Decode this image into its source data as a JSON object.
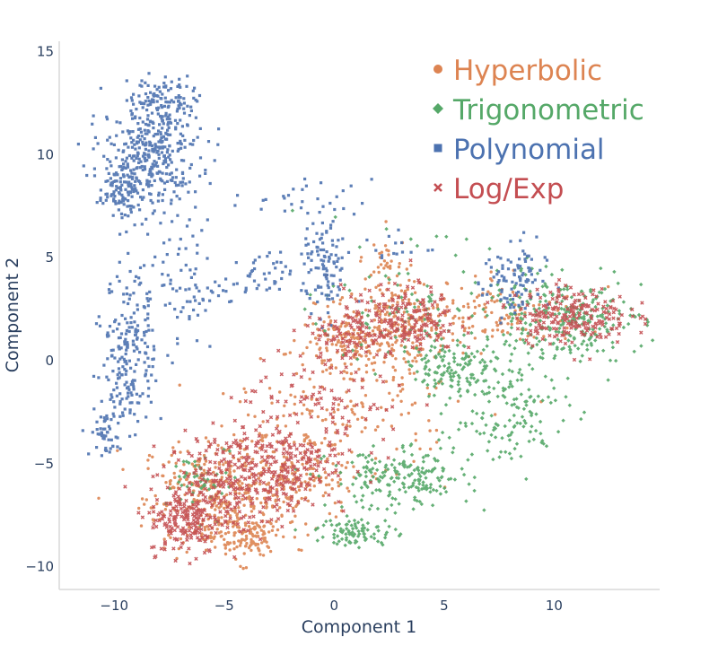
{
  "chart_data": {
    "type": "scatter",
    "title": "",
    "xlabel": "Component 1",
    "ylabel": "Component 2",
    "xlim": [
      -12.5,
      14.8
    ],
    "ylim": [
      -11.1,
      15.5
    ],
    "xticks": [
      -10,
      -5,
      0,
      5,
      10
    ],
    "yticks": [
      -10,
      -5,
      0,
      5,
      10,
      15
    ],
    "xtick_labels": [
      "−10",
      "−5",
      "0",
      "5",
      "10"
    ],
    "ytick_labels": [
      "−10",
      "−5",
      "0",
      "5",
      "10",
      "15"
    ],
    "grid": false,
    "legend_position": "top-right",
    "series": [
      {
        "name": "Hyperbolic",
        "color": "#dd8452",
        "marker": "circle",
        "clusters": [
          {
            "cx": -5.5,
            "cy": -6.5,
            "sx": 1.6,
            "sy": 1.3,
            "n": 320
          },
          {
            "cx": -4.2,
            "cy": -8.5,
            "sx": 1.0,
            "sy": 0.6,
            "n": 120
          },
          {
            "cx": -2.0,
            "cy": -5.8,
            "sx": 1.5,
            "sy": 1.0,
            "n": 180
          },
          {
            "cx": 1.0,
            "cy": 0.8,
            "sx": 1.3,
            "sy": 0.7,
            "n": 160
          },
          {
            "cx": 3.0,
            "cy": 2.0,
            "sx": 1.6,
            "sy": 1.0,
            "n": 180
          },
          {
            "cx": 7.5,
            "cy": 2.2,
            "sx": 2.0,
            "sy": 0.8,
            "n": 120
          },
          {
            "cx": 0.5,
            "cy": -2.5,
            "sx": 2.5,
            "sy": 1.5,
            "n": 160
          },
          {
            "cx": 2.5,
            "cy": 4.5,
            "sx": 0.5,
            "sy": 0.8,
            "n": 40
          }
        ]
      },
      {
        "name": "Trigonometric",
        "color": "#55a868",
        "marker": "diamond",
        "clusters": [
          {
            "cx": 3.0,
            "cy": -5.8,
            "sx": 1.6,
            "sy": 0.7,
            "n": 200
          },
          {
            "cx": 1.0,
            "cy": -8.3,
            "sx": 0.9,
            "sy": 0.35,
            "n": 90
          },
          {
            "cx": 5.5,
            "cy": -0.3,
            "sx": 1.0,
            "sy": 0.6,
            "n": 120
          },
          {
            "cx": 10.5,
            "cy": 2.0,
            "sx": 1.8,
            "sy": 1.0,
            "n": 260
          },
          {
            "cx": 7.5,
            "cy": -2.5,
            "sx": 1.5,
            "sy": 1.3,
            "n": 140
          },
          {
            "cx": -5.8,
            "cy": -5.8,
            "sx": 0.8,
            "sy": 0.8,
            "n": 50
          },
          {
            "cx": 4.0,
            "cy": 2.5,
            "sx": 2.5,
            "sy": 1.5,
            "n": 110
          }
        ]
      },
      {
        "name": "Polynomial",
        "color": "#4c72b0",
        "marker": "square",
        "clusters": [
          {
            "cx": -8.3,
            "cy": 10.0,
            "sx": 1.1,
            "sy": 1.4,
            "n": 380
          },
          {
            "cx": -9.8,
            "cy": 8.3,
            "sx": 0.45,
            "sy": 0.6,
            "n": 90
          },
          {
            "cx": -7.6,
            "cy": 12.8,
            "sx": 0.7,
            "sy": 0.5,
            "n": 80
          },
          {
            "cx": -9.3,
            "cy": 0.5,
            "sx": 0.6,
            "sy": 1.9,
            "n": 200
          },
          {
            "cx": -10.4,
            "cy": -3.5,
            "sx": 0.35,
            "sy": 0.6,
            "n": 50
          },
          {
            "cx": -0.4,
            "cy": 4.5,
            "sx": 0.5,
            "sy": 1.2,
            "n": 100
          },
          {
            "cx": 8.2,
            "cy": 3.8,
            "sx": 0.7,
            "sy": 1.0,
            "n": 100
          },
          {
            "cx": -3.5,
            "cy": 4.0,
            "sx": 0.8,
            "sy": 0.6,
            "n": 45
          },
          {
            "cx": -1.5,
            "cy": 7.8,
            "sx": 1.6,
            "sy": 0.5,
            "n": 30
          },
          {
            "cx": -7.0,
            "cy": 3.5,
            "sx": 1.0,
            "sy": 1.5,
            "n": 80
          },
          {
            "cx": 2.5,
            "cy": 5.5,
            "sx": 1.0,
            "sy": 0.4,
            "n": 15
          }
        ]
      },
      {
        "name": "Log/Exp",
        "color": "#c44e52",
        "marker": "x",
        "clusters": [
          {
            "cx": -6.8,
            "cy": -7.8,
            "sx": 0.8,
            "sy": 0.8,
            "n": 160
          },
          {
            "cx": -4.8,
            "cy": -6.0,
            "sx": 1.4,
            "sy": 1.2,
            "n": 250
          },
          {
            "cx": -2.3,
            "cy": -5.0,
            "sx": 1.2,
            "sy": 0.9,
            "n": 150
          },
          {
            "cx": 3.0,
            "cy": 2.0,
            "sx": 1.3,
            "sy": 0.8,
            "n": 200
          },
          {
            "cx": 10.8,
            "cy": 2.2,
            "sx": 1.3,
            "sy": 0.7,
            "n": 220
          },
          {
            "cx": 0.5,
            "cy": 1.0,
            "sx": 0.8,
            "sy": 0.5,
            "n": 60
          },
          {
            "cx": -0.5,
            "cy": -2.5,
            "sx": 2.0,
            "sy": 1.6,
            "n": 120
          }
        ]
      }
    ]
  }
}
